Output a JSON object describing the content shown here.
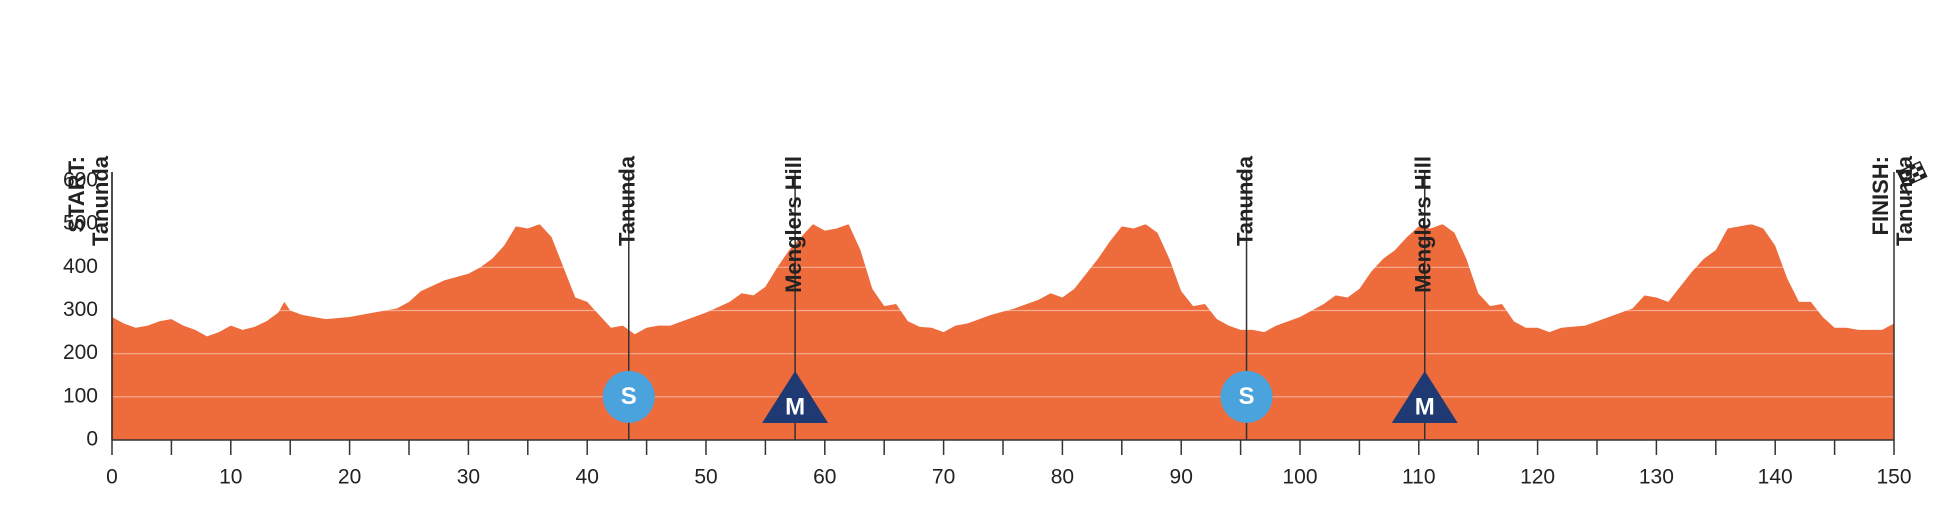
{
  "chart_data": {
    "type": "area",
    "color": "#ee6b3c",
    "x": [
      0,
      1,
      2,
      3,
      4,
      5,
      6,
      7,
      8,
      9,
      10,
      11,
      12,
      13,
      14,
      14.5,
      15,
      16,
      18,
      20,
      22,
      24,
      25,
      26,
      28,
      30,
      31,
      32,
      33,
      34,
      35,
      36,
      37,
      38,
      39,
      40,
      41,
      42,
      43,
      44,
      45,
      46,
      47,
      48,
      50,
      52,
      53,
      54,
      55,
      56,
      57,
      58,
      59,
      60,
      61,
      62,
      63,
      64,
      65,
      66,
      67,
      68,
      69,
      70,
      71,
      72,
      74,
      76,
      78,
      79,
      80,
      81,
      82,
      83,
      84,
      85,
      86,
      87,
      88,
      89,
      90,
      91,
      92,
      93,
      94,
      95,
      96,
      97,
      98,
      100,
      102,
      103,
      104,
      105,
      106,
      107,
      108,
      109,
      110,
      111,
      112,
      113,
      114,
      115,
      116,
      117,
      118,
      119,
      120,
      121,
      122,
      124,
      126,
      128,
      129,
      130,
      131,
      132,
      133,
      134,
      135,
      136,
      137,
      138,
      139,
      140,
      141,
      142,
      143,
      144,
      145,
      146,
      147,
      148,
      149,
      150
    ],
    "values": [
      285,
      270,
      260,
      265,
      275,
      280,
      265,
      255,
      240,
      250,
      265,
      255,
      262,
      275,
      295,
      320,
      300,
      290,
      280,
      285,
      295,
      305,
      320,
      345,
      370,
      385,
      400,
      420,
      450,
      495,
      490,
      500,
      470,
      400,
      330,
      320,
      290,
      260,
      265,
      245,
      260,
      265,
      265,
      275,
      295,
      320,
      340,
      335,
      355,
      400,
      440,
      470,
      500,
      485,
      490,
      500,
      440,
      350,
      310,
      315,
      275,
      262,
      260,
      250,
      265,
      270,
      290,
      305,
      325,
      340,
      330,
      350,
      385,
      420,
      460,
      495,
      490,
      500,
      480,
      420,
      345,
      310,
      315,
      280,
      265,
      255,
      255,
      250,
      265,
      285,
      315,
      335,
      330,
      350,
      390,
      420,
      440,
      470,
      495,
      490,
      500,
      480,
      420,
      340,
      310,
      315,
      275,
      260,
      260,
      250,
      260,
      265,
      285,
      305,
      335,
      330,
      320,
      355,
      390,
      420,
      440,
      490,
      495,
      500,
      490,
      450,
      375,
      320,
      320,
      285,
      260,
      260,
      255,
      255,
      255,
      270
    ],
    "xlim": [
      0,
      150
    ],
    "ylim": [
      0,
      600
    ],
    "xticks": [
      0,
      10,
      20,
      30,
      40,
      50,
      60,
      70,
      80,
      90,
      100,
      110,
      120,
      130,
      140,
      150
    ],
    "xticks_minor": [
      5,
      15,
      25,
      35,
      45,
      55,
      65,
      75,
      85,
      95,
      105,
      115,
      125,
      135,
      145
    ],
    "yticks": [
      0,
      100,
      200,
      300,
      400,
      500,
      600
    ],
    "grid": true,
    "markers": [
      {
        "km": 0,
        "lines": [
          "START:",
          "Tanunda"
        ]
      },
      {
        "km": 43.5,
        "lines": [
          "Tanunda"
        ],
        "icon": "S"
      },
      {
        "km": 57.5,
        "lines": [
          "Menglers Hill"
        ],
        "icon": "M"
      },
      {
        "km": 95.5,
        "lines": [
          "Tanunda"
        ],
        "icon": "S"
      },
      {
        "km": 110.5,
        "lines": [
          "Menglers Hill"
        ],
        "icon": "M"
      },
      {
        "km": 150,
        "lines": [
          "FINISH:",
          "Tanunda"
        ]
      }
    ]
  }
}
